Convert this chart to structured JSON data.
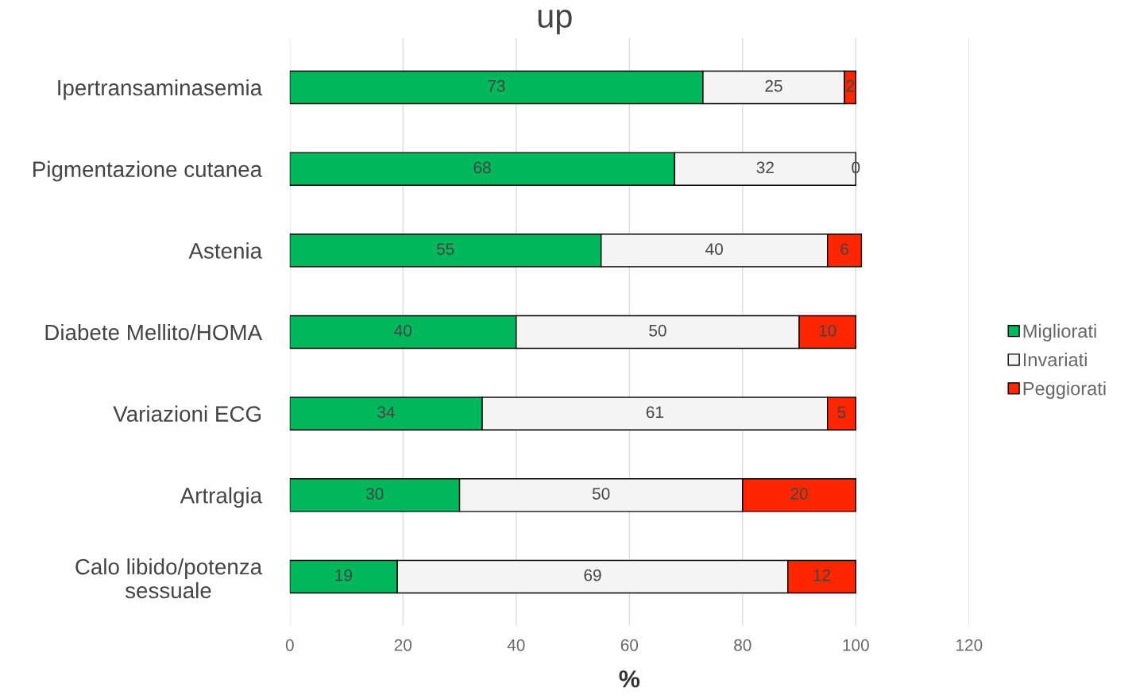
{
  "chart_data": {
    "type": "bar",
    "orientation": "horizontal",
    "stacked": true,
    "title": "up",
    "xlabel": "%",
    "categories": [
      "Ipertransaminasemia",
      "Pigmentazione cutanea",
      "Astenia",
      "Diabete Mellito/HOMA",
      "Variazioni ECG",
      "Artralgia",
      "Calo libido/potenza\nsessuale"
    ],
    "series": [
      {
        "name": "Migliorati",
        "color": "#00b85c",
        "values": [
          73,
          68,
          55,
          40,
          34,
          30,
          19
        ]
      },
      {
        "name": "Invariati",
        "color": "#f4f4f4",
        "values": [
          25,
          32,
          40,
          50,
          61,
          50,
          69
        ]
      },
      {
        "name": "Peggiorati",
        "color": "#ff2600",
        "values": [
          2,
          0,
          6,
          10,
          5,
          20,
          12
        ]
      }
    ],
    "xlim": [
      0,
      120
    ],
    "xticks": [
      0,
      20,
      40,
      60,
      80,
      100,
      120
    ],
    "grid": "x",
    "legend": "right",
    "data_labels": true,
    "marker": "square"
  }
}
